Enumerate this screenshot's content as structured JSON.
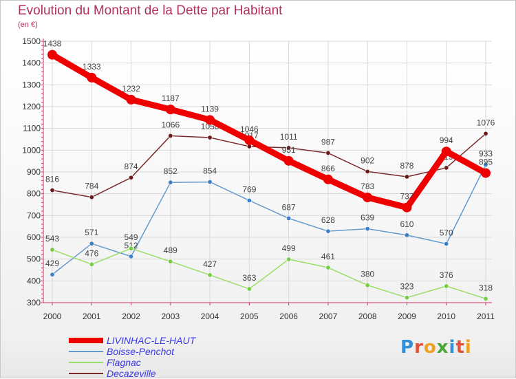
{
  "title": "Evolution du Montant de la Dette par Habitant",
  "subtitle": "(en €)",
  "logo": {
    "text": "Proxiti",
    "colors": [
      "#2f8fd8",
      "#e0523a",
      "#f0a020",
      "#4aa83a",
      "#2f8fd8",
      "#e0523a",
      "#f0a020"
    ]
  },
  "chart_data": {
    "type": "line",
    "title": "Evolution du Montant de la Dette par Habitant",
    "subtitle": "(en €)",
    "x": [
      "2000",
      "2001",
      "2002",
      "2003",
      "2004",
      "2005",
      "2006",
      "2007",
      "2008",
      "2009",
      "2010",
      "2011"
    ],
    "ylim": [
      300,
      1500
    ],
    "yticks": [
      300,
      400,
      500,
      600,
      700,
      800,
      900,
      1000,
      1100,
      1200,
      1300,
      1400,
      1500
    ],
    "grid": true,
    "legend_position": "bottom-left",
    "series": [
      {
        "name": "LIVINHAC-LE-HAUT",
        "color": "#ee0000",
        "highlight": true,
        "values": [
          1438,
          1333,
          1232,
          1187,
          1139,
          1046,
          951,
          866,
          783,
          737,
          994,
          895
        ],
        "labels": [
          "1438",
          "1333",
          "1232",
          "1187",
          "1139",
          "1046",
          "951",
          "866",
          "783",
          "737",
          "994",
          "895"
        ]
      },
      {
        "name": "Boisse-Penchot",
        "color": "#6699cc",
        "point_color": "#3a7fc8",
        "highlight": false,
        "values": [
          429,
          571,
          512,
          852,
          854,
          769,
          687,
          628,
          639,
          610,
          570,
          933
        ],
        "labels": [
          "429",
          "571",
          "512",
          "852",
          "854",
          "769",
          "687",
          "628",
          "639",
          "610",
          "570",
          "933"
        ]
      },
      {
        "name": "Flagnac",
        "color": "#99dd66",
        "point_color": "#77cc44",
        "highlight": false,
        "values": [
          543,
          476,
          549,
          489,
          427,
          363,
          499,
          461,
          380,
          323,
          376,
          318
        ],
        "labels": [
          "543",
          "476",
          "549",
          "489",
          "427",
          "363",
          "499",
          "461",
          "380",
          "323",
          "376",
          "318"
        ]
      },
      {
        "name": "Decazeville",
        "color": "#7a2a2a",
        "point_color": "#6a1a1a",
        "highlight": false,
        "values": [
          816,
          784,
          874,
          1066,
          1058,
          1017,
          1011,
          987,
          902,
          878,
          919,
          1076
        ],
        "labels": [
          "816",
          "784",
          "874",
          "1066",
          "1058",
          "1017",
          "1011",
          "987",
          "902",
          "878",
          "919",
          "1076"
        ]
      }
    ]
  }
}
